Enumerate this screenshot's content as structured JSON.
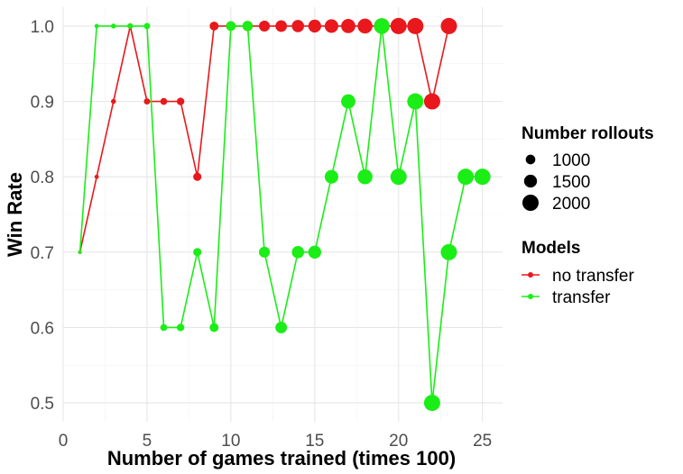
{
  "chart_data": {
    "type": "scatter",
    "xlabel": "Number of games trained (times 100)",
    "ylabel": "Win Rate",
    "xlim": [
      0,
      26.2
    ],
    "ylim": [
      0.475,
      1.025
    ],
    "x_ticks": [
      0,
      5,
      10,
      15,
      20,
      25
    ],
    "y_ticks": [
      0.5,
      0.6,
      0.7,
      0.8,
      0.9,
      1.0
    ],
    "y_tick_labels": [
      "0.5",
      "0.6",
      "0.7",
      "0.8",
      "0.9",
      "1.0"
    ],
    "grid": true,
    "legend_position": "right",
    "size_legend": {
      "title": "Number rollouts",
      "entries": [
        {
          "label": "1000",
          "value": 1000
        },
        {
          "label": "1500",
          "value": 1500
        },
        {
          "label": "2000",
          "value": 2000
        }
      ]
    },
    "color_legend": {
      "title": "Models"
    },
    "series": [
      {
        "name": "no transfer",
        "color": "#e8181c",
        "points": [
          {
            "x": 1,
            "y": 0.7,
            "rollouts": 100
          },
          {
            "x": 2,
            "y": 0.8,
            "rollouts": 200
          },
          {
            "x": 3,
            "y": 0.9,
            "rollouts": 300
          },
          {
            "x": 4,
            "y": 1.0,
            "rollouts": 400
          },
          {
            "x": 5,
            "y": 0.9,
            "rollouts": 500
          },
          {
            "x": 6,
            "y": 0.9,
            "rollouts": 600
          },
          {
            "x": 7,
            "y": 0.9,
            "rollouts": 700
          },
          {
            "x": 8,
            "y": 0.8,
            "rollouts": 800
          },
          {
            "x": 9,
            "y": 1.0,
            "rollouts": 900
          },
          {
            "x": 10,
            "y": 1.0,
            "rollouts": 1000
          },
          {
            "x": 11,
            "y": 1.0,
            "rollouts": 1100
          },
          {
            "x": 12,
            "y": 1.0,
            "rollouts": 1200
          },
          {
            "x": 13,
            "y": 1.0,
            "rollouts": 1300
          },
          {
            "x": 14,
            "y": 1.0,
            "rollouts": 1400
          },
          {
            "x": 15,
            "y": 1.0,
            "rollouts": 1500
          },
          {
            "x": 16,
            "y": 1.0,
            "rollouts": 1600
          },
          {
            "x": 17,
            "y": 1.0,
            "rollouts": 1700
          },
          {
            "x": 18,
            "y": 1.0,
            "rollouts": 1800
          },
          {
            "x": 19,
            "y": 1.0,
            "rollouts": 1900
          },
          {
            "x": 20,
            "y": 1.0,
            "rollouts": 2000
          },
          {
            "x": 21,
            "y": 1.0,
            "rollouts": 2100
          },
          {
            "x": 22,
            "y": 0.9,
            "rollouts": 2200
          },
          {
            "x": 23,
            "y": 1.0,
            "rollouts": 2300
          }
        ]
      },
      {
        "name": "transfer",
        "color": "#1aee16",
        "points": [
          {
            "x": 1,
            "y": 0.7,
            "rollouts": 100
          },
          {
            "x": 2,
            "y": 1.0,
            "rollouts": 200
          },
          {
            "x": 3,
            "y": 1.0,
            "rollouts": 300
          },
          {
            "x": 4,
            "y": 1.0,
            "rollouts": 400
          },
          {
            "x": 5,
            "y": 1.0,
            "rollouts": 500
          },
          {
            "x": 6,
            "y": 0.6,
            "rollouts": 600
          },
          {
            "x": 7,
            "y": 0.6,
            "rollouts": 700
          },
          {
            "x": 8,
            "y": 0.7,
            "rollouts": 800
          },
          {
            "x": 9,
            "y": 0.6,
            "rollouts": 900
          },
          {
            "x": 10,
            "y": 1.0,
            "rollouts": 1000
          },
          {
            "x": 11,
            "y": 1.0,
            "rollouts": 1100
          },
          {
            "x": 12,
            "y": 0.7,
            "rollouts": 1200
          },
          {
            "x": 13,
            "y": 0.6,
            "rollouts": 1300
          },
          {
            "x": 14,
            "y": 0.7,
            "rollouts": 1400
          },
          {
            "x": 15,
            "y": 0.7,
            "rollouts": 1500
          },
          {
            "x": 16,
            "y": 0.8,
            "rollouts": 1600
          },
          {
            "x": 17,
            "y": 0.9,
            "rollouts": 1700
          },
          {
            "x": 18,
            "y": 0.8,
            "rollouts": 1800
          },
          {
            "x": 19,
            "y": 1.0,
            "rollouts": 1900
          },
          {
            "x": 20,
            "y": 0.8,
            "rollouts": 2000
          },
          {
            "x": 21,
            "y": 0.9,
            "rollouts": 2100
          },
          {
            "x": 22,
            "y": 0.5,
            "rollouts": 2200
          },
          {
            "x": 23,
            "y": 0.7,
            "rollouts": 2300
          },
          {
            "x": 24,
            "y": 0.8,
            "rollouts": 2400
          },
          {
            "x": 25,
            "y": 0.8,
            "rollouts": 2500
          }
        ]
      }
    ]
  }
}
